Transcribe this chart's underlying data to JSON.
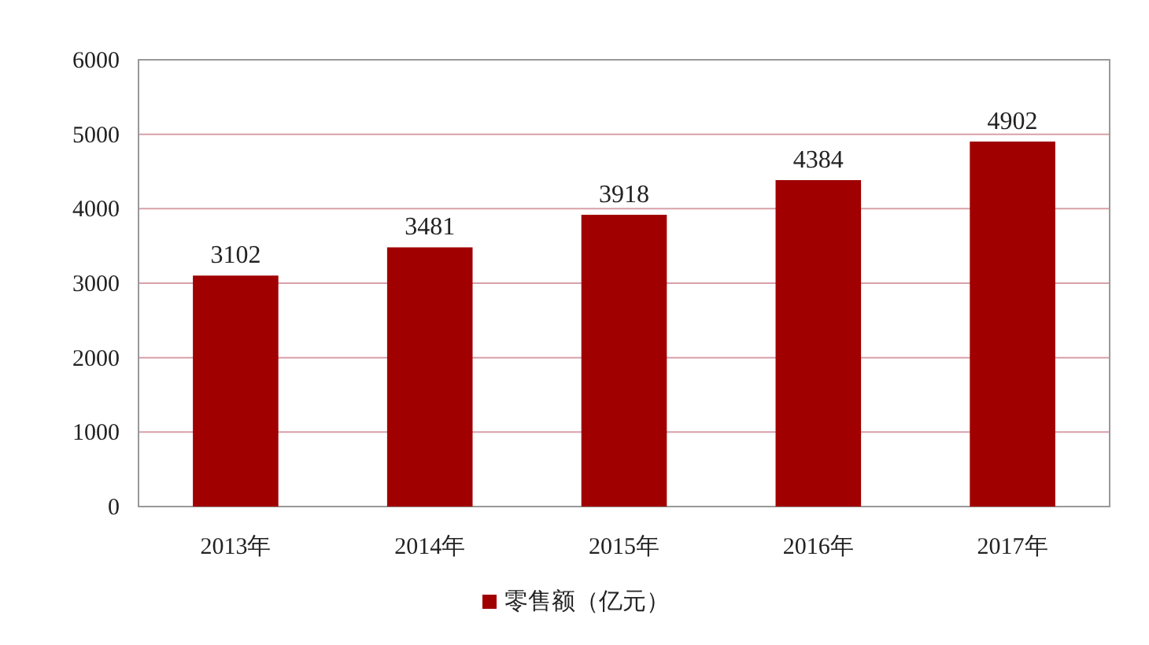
{
  "chart_data": {
    "type": "bar",
    "categories": [
      "2013年",
      "2014年",
      "2015年",
      "2016年",
      "2017年"
    ],
    "series": [
      {
        "name": "零售额（亿元）",
        "color": "#a00000",
        "values": [
          3102,
          3481,
          3918,
          4384,
          4902
        ]
      }
    ],
    "ylim": [
      0,
      6000
    ],
    "yticks": [
      0,
      1000,
      2000,
      3000,
      4000,
      5000,
      6000
    ],
    "grid": "y",
    "legend": "bottom",
    "data_labels": true
  }
}
